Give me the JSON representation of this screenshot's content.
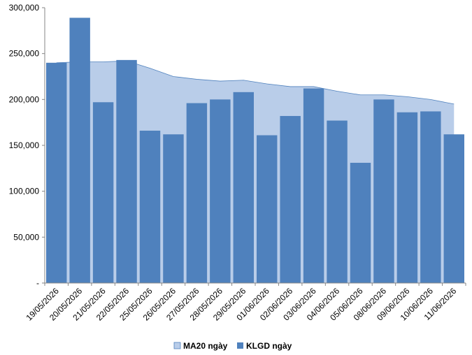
{
  "chart_data": {
    "type": "bar",
    "categories": [
      "19/05/2026",
      "20/05/2026",
      "21/05/2026",
      "22/05/2026",
      "25/05/2026",
      "26/05/2026",
      "27/05/2026",
      "28/05/2026",
      "29/05/2026",
      "01/06/2026",
      "02/06/2026",
      "03/06/2026",
      "04/06/2026",
      "05/06/2026",
      "08/06/2026",
      "09/06/2026",
      "10/06/2026",
      "11/06/2026"
    ],
    "series": [
      {
        "name": "MA20 ngày",
        "type": "area",
        "color": "#b9cde9",
        "line_color": "#4f81bd",
        "values": [
          240000,
          241000,
          241000,
          242000,
          234000,
          225000,
          222000,
          220000,
          221000,
          217000,
          214000,
          214000,
          209000,
          205000,
          205000,
          203000,
          200000,
          195000
        ]
      },
      {
        "name": "KLGD ngày",
        "type": "bar",
        "color": "#4f81bd",
        "values": [
          240000,
          289000,
          197000,
          243000,
          166000,
          162000,
          196000,
          200000,
          208000,
          161000,
          182000,
          212000,
          177000,
          131000,
          200000,
          186000,
          187000,
          162000
        ]
      }
    ],
    "yticks": [
      "-",
      "50,000",
      "100,000",
      "150,000",
      "200,000",
      "250,000",
      "300,000"
    ],
    "ylim": [
      0,
      300000
    ],
    "legend_position": "bottom",
    "grid": false
  }
}
